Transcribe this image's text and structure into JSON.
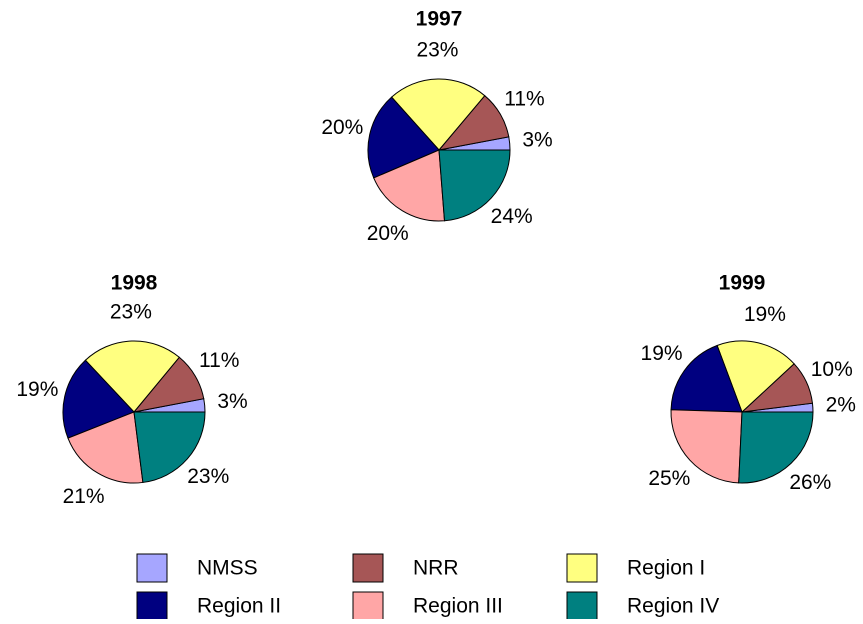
{
  "chart_data": [
    {
      "type": "pie",
      "title": "1997",
      "categories": [
        "NMSS",
        "NRR",
        "Region I",
        "Region II",
        "Region III",
        "Region IV"
      ],
      "colors": [
        "#a6a6ff",
        "#a65656",
        "#ffff80",
        "#000080",
        "#ffa6a6",
        "#008080"
      ],
      "values": [
        3,
        11,
        23,
        20,
        20,
        24
      ],
      "value_labels": [
        "3%",
        "11%",
        "23%",
        "20%",
        "20%",
        "24%"
      ],
      "legend": "bottom"
    },
    {
      "type": "pie",
      "title": "1998",
      "categories": [
        "NMSS",
        "NRR",
        "Region I",
        "Region II",
        "Region III",
        "Region IV"
      ],
      "colors": [
        "#a6a6ff",
        "#a65656",
        "#ffff80",
        "#000080",
        "#ffa6a6",
        "#008080"
      ],
      "values": [
        3,
        11,
        23,
        19,
        21,
        23
      ],
      "value_labels": [
        "3%",
        "11%",
        "23%",
        "19%",
        "21%",
        "23%"
      ]
    },
    {
      "type": "pie",
      "title": "1999",
      "categories": [
        "NMSS",
        "NRR",
        "Region I",
        "Region II",
        "Region III",
        "Region IV"
      ],
      "colors": [
        "#a6a6ff",
        "#a65656",
        "#ffff80",
        "#000080",
        "#ffa6a6",
        "#008080"
      ],
      "values": [
        2,
        10,
        19,
        19,
        25,
        26
      ],
      "value_labels": [
        "2%",
        "10%",
        "19%",
        "19%",
        "25%",
        "26%"
      ]
    }
  ]
}
